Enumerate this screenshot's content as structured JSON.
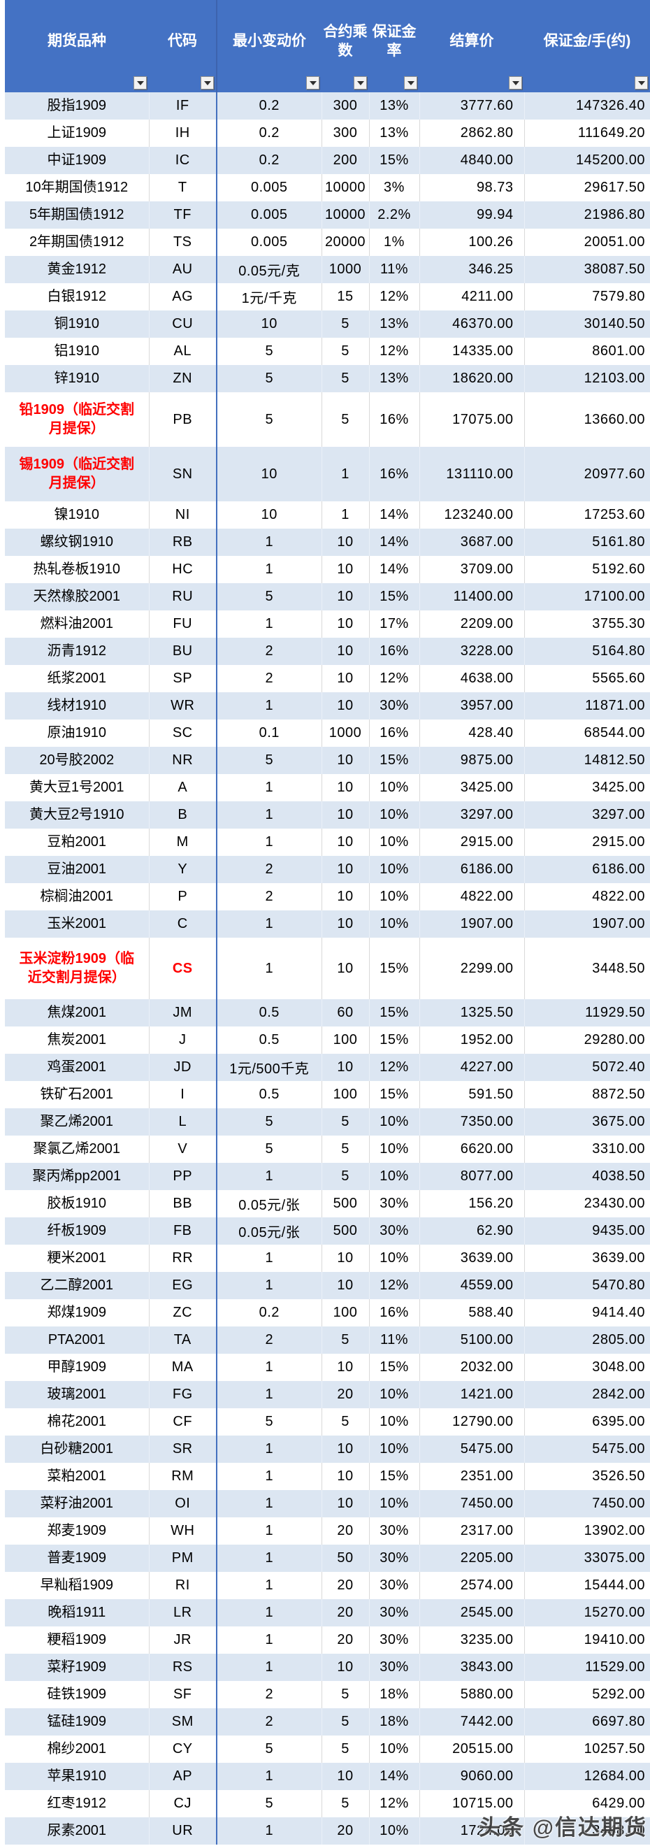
{
  "table": {
    "columns": [
      "期货品种",
      "代码",
      "最小变动价",
      "合约乘数",
      "保证金率",
      "结算价",
      "保证金/手(约)"
    ],
    "rows": [
      [
        "股指1909",
        "IF",
        "0.2",
        "300",
        "13%",
        "3777.60",
        "147326.40"
      ],
      [
        "上证1909",
        "IH",
        "0.2",
        "300",
        "13%",
        "2862.80",
        "111649.20"
      ],
      [
        "中证1909",
        "IC",
        "0.2",
        "200",
        "15%",
        "4840.00",
        "145200.00"
      ],
      [
        "10年期国债1912",
        "T",
        "0.005",
        "10000",
        "3%",
        "98.73",
        "29617.50"
      ],
      [
        "5年期国债1912",
        "TF",
        "0.005",
        "10000",
        "2.2%",
        "99.94",
        "21986.80"
      ],
      [
        "2年期国债1912",
        "TS",
        "0.005",
        "20000",
        "1%",
        "100.26",
        "20051.00"
      ],
      [
        "黄金1912",
        "AU",
        "0.05元/克",
        "1000",
        "11%",
        "346.25",
        "38087.50"
      ],
      [
        "白银1912",
        "AG",
        "1元/千克",
        "15",
        "12%",
        "4211.00",
        "7579.80"
      ],
      [
        "铜1910",
        "CU",
        "10",
        "5",
        "13%",
        "46370.00",
        "30140.50"
      ],
      [
        "铝1910",
        "AL",
        "5",
        "5",
        "12%",
        "14335.00",
        "8601.00"
      ],
      [
        "锌1910",
        "ZN",
        "5",
        "5",
        "13%",
        "18620.00",
        "12103.00"
      ],
      [
        "铅1909（临近交割月提保）",
        "PB",
        "5",
        "5",
        "16%",
        "17075.00",
        "13660.00"
      ],
      [
        "锡1909（临近交割月提保）",
        "SN",
        "10",
        "1",
        "16%",
        "131110.00",
        "20977.60"
      ],
      [
        "镍1910",
        "NI",
        "10",
        "1",
        "14%",
        "123240.00",
        "17253.60"
      ],
      [
        "螺纹钢1910",
        "RB",
        "1",
        "10",
        "14%",
        "3687.00",
        "5161.80"
      ],
      [
        "热轧卷板1910",
        "HC",
        "1",
        "10",
        "14%",
        "3709.00",
        "5192.60"
      ],
      [
        "天然橡胶2001",
        "RU",
        "5",
        "10",
        "15%",
        "11400.00",
        "17100.00"
      ],
      [
        "燃料油2001",
        "FU",
        "1",
        "10",
        "17%",
        "2209.00",
        "3755.30"
      ],
      [
        "沥青1912",
        "BU",
        "2",
        "10",
        "16%",
        "3228.00",
        "5164.80"
      ],
      [
        "纸浆2001",
        "SP",
        "2",
        "10",
        "12%",
        "4638.00",
        "5565.60"
      ],
      [
        "线材1910",
        "WR",
        "1",
        "10",
        "30%",
        "3957.00",
        "11871.00"
      ],
      [
        "原油1910",
        "SC",
        "0.1",
        "1000",
        "16%",
        "428.40",
        "68544.00"
      ],
      [
        "20号胶2002",
        "NR",
        "5",
        "10",
        "15%",
        "9875.00",
        "14812.50"
      ],
      [
        "黄大豆1号2001",
        "A",
        "1",
        "10",
        "10%",
        "3425.00",
        "3425.00"
      ],
      [
        "黄大豆2号1910",
        "B",
        "1",
        "10",
        "10%",
        "3297.00",
        "3297.00"
      ],
      [
        "豆粕2001",
        "M",
        "1",
        "10",
        "10%",
        "2915.00",
        "2915.00"
      ],
      [
        "豆油2001",
        "Y",
        "2",
        "10",
        "10%",
        "6186.00",
        "6186.00"
      ],
      [
        "棕榈油2001",
        "P",
        "2",
        "10",
        "10%",
        "4822.00",
        "4822.00"
      ],
      [
        "玉米2001",
        "C",
        "1",
        "10",
        "10%",
        "1907.00",
        "1907.00"
      ],
      [
        "玉米淀粉1909（临近交割月提保）",
        "CS",
        "1",
        "10",
        "15%",
        "2299.00",
        "3448.50"
      ],
      [
        "焦煤2001",
        "JM",
        "0.5",
        "60",
        "15%",
        "1325.50",
        "11929.50"
      ],
      [
        "焦炭2001",
        "J",
        "0.5",
        "100",
        "15%",
        "1952.00",
        "29280.00"
      ],
      [
        "鸡蛋2001",
        "JD",
        "1元/500千克",
        "10",
        "12%",
        "4227.00",
        "5072.40"
      ],
      [
        "铁矿石2001",
        "I",
        "0.5",
        "100",
        "15%",
        "591.50",
        "8872.50"
      ],
      [
        "聚乙烯2001",
        "L",
        "5",
        "5",
        "10%",
        "7350.00",
        "3675.00"
      ],
      [
        "聚氯乙烯2001",
        "V",
        "5",
        "5",
        "10%",
        "6620.00",
        "3310.00"
      ],
      [
        "聚丙烯pp2001",
        "PP",
        "1",
        "5",
        "10%",
        "8077.00",
        "4038.50"
      ],
      [
        "胶板1910",
        "BB",
        "0.05元/张",
        "500",
        "30%",
        "156.20",
        "23430.00"
      ],
      [
        "纤板1909",
        "FB",
        "0.05元/张",
        "500",
        "30%",
        "62.90",
        "9435.00"
      ],
      [
        "粳米2001",
        "RR",
        "1",
        "10",
        "10%",
        "3639.00",
        "3639.00"
      ],
      [
        "乙二醇2001",
        "EG",
        "1",
        "10",
        "12%",
        "4559.00",
        "5470.80"
      ],
      [
        "郑煤1909",
        "ZC",
        "0.2",
        "100",
        "16%",
        "588.40",
        "9414.40"
      ],
      [
        "PTA2001",
        "TA",
        "2",
        "5",
        "11%",
        "5100.00",
        "2805.00"
      ],
      [
        "甲醇1909",
        "MA",
        "1",
        "10",
        "15%",
        "2032.00",
        "3048.00"
      ],
      [
        "玻璃2001",
        "FG",
        "1",
        "20",
        "10%",
        "1421.00",
        "2842.00"
      ],
      [
        "棉花2001",
        "CF",
        "5",
        "5",
        "10%",
        "12790.00",
        "6395.00"
      ],
      [
        "白砂糖2001",
        "SR",
        "1",
        "10",
        "10%",
        "5475.00",
        "5475.00"
      ],
      [
        "菜粕2001",
        "RM",
        "1",
        "10",
        "15%",
        "2351.00",
        "3526.50"
      ],
      [
        "菜籽油2001",
        "OI",
        "1",
        "10",
        "10%",
        "7450.00",
        "7450.00"
      ],
      [
        "郑麦1909",
        "WH",
        "1",
        "20",
        "30%",
        "2317.00",
        "13902.00"
      ],
      [
        "普麦1909",
        "PM",
        "1",
        "50",
        "30%",
        "2205.00",
        "33075.00"
      ],
      [
        "早籼稻1909",
        "RI",
        "1",
        "20",
        "30%",
        "2574.00",
        "15444.00"
      ],
      [
        "晚稻1911",
        "LR",
        "1",
        "20",
        "30%",
        "2545.00",
        "15270.00"
      ],
      [
        "粳稻1909",
        "JR",
        "1",
        "20",
        "30%",
        "3235.00",
        "19410.00"
      ],
      [
        "菜籽1909",
        "RS",
        "1",
        "10",
        "30%",
        "3843.00",
        "11529.00"
      ],
      [
        "硅铁1909",
        "SF",
        "2",
        "5",
        "18%",
        "5880.00",
        "5292.00"
      ],
      [
        "锰硅1909",
        "SM",
        "2",
        "5",
        "18%",
        "7442.00",
        "6697.80"
      ],
      [
        "棉纱2001",
        "CY",
        "5",
        "5",
        "10%",
        "20515.00",
        "10257.50"
      ],
      [
        "苹果1910",
        "AP",
        "1",
        "10",
        "14%",
        "9060.00",
        "12684.00"
      ],
      [
        "红枣1912",
        "CJ",
        "5",
        "5",
        "12%",
        "10715.00",
        "6429.00"
      ],
      [
        "尿素2001",
        "UR",
        "1",
        "20",
        "10%",
        "1724.00",
        "3448.00"
      ]
    ],
    "red_name_rows": [
      11,
      12,
      29
    ],
    "red_code_rows": [
      29
    ]
  },
  "watermark": {
    "text": "头条 @信达期货"
  },
  "icons": {
    "filter_dropdown": "filter-dropdown-icon"
  },
  "colors": {
    "header_bg": "#4472C4",
    "header_text": "#FFFFFF",
    "band_row": "#DCE6F2",
    "alert_text": "#FF0000",
    "freeze_line": "#4470BE",
    "grid_line": "#D9D9D9",
    "watermark_text": "#3C3C3C"
  }
}
